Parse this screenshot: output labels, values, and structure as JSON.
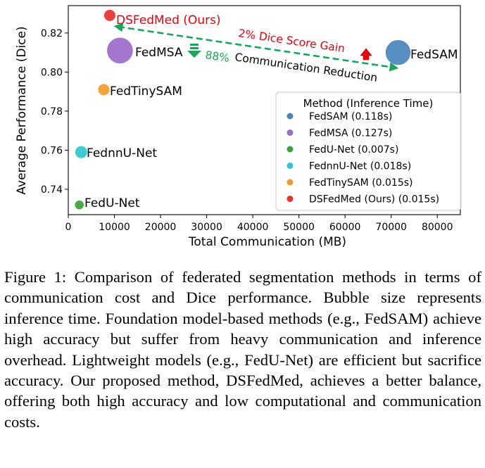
{
  "chart_data": {
    "type": "scatter",
    "subtype": "bubble",
    "title": "",
    "xlabel": "Total Communication (MB)",
    "ylabel": "Average Performance (Dice)",
    "xlim": [
      0,
      85000
    ],
    "ylim": [
      0.727,
      0.834
    ],
    "xticks": [
      0,
      10000,
      20000,
      30000,
      40000,
      50000,
      60000,
      70000,
      80000
    ],
    "yticks": [
      0.74,
      0.76,
      0.78,
      0.8,
      0.82
    ],
    "ytick_labels": [
      "0.74",
      "0.76",
      "0.78",
      "0.80",
      "0.82"
    ],
    "grid": false,
    "legend_title": "Method (Inference Time)",
    "legend_position": "lower-right",
    "series": [
      {
        "name": "FedSAM",
        "legend": "FedSAM (0.118s)",
        "x": 71500,
        "y": 0.81,
        "inference_time_s": 0.118,
        "color": "#4a86bd"
      },
      {
        "name": "FedMSA",
        "legend": "FedMSA (0.127s)",
        "x": 11200,
        "y": 0.811,
        "inference_time_s": 0.127,
        "color": "#9b6bc9"
      },
      {
        "name": "FedU-Net",
        "legend": "FedU-Net (0.007s)",
        "x": 2400,
        "y": 0.732,
        "inference_time_s": 0.007,
        "color": "#3aa23a"
      },
      {
        "name": "FednnU-Net",
        "legend": "FednnU-Net (0.018s)",
        "x": 2800,
        "y": 0.759,
        "inference_time_s": 0.018,
        "color": "#2fc7cf"
      },
      {
        "name": "FedTinySAM",
        "legend": "FedTinySAM (0.015s)",
        "x": 7700,
        "y": 0.791,
        "inference_time_s": 0.015,
        "color": "#f39a2f"
      },
      {
        "name": "DSFedMed",
        "legend": "DSFedMed (Ours) (0.015s)",
        "x": 9000,
        "y": 0.829,
        "inference_time_s": 0.015,
        "color": "#e8312f"
      }
    ],
    "point_labels": {
      "FedSAM": "FedSAM",
      "FedMSA": "FedMSA",
      "FedU-Net": "FedU-Net",
      "FednnU-Net": "FednnU-Net",
      "FedTinySAM": "FedTinySAM",
      "DSFedMed": "DSFedMed (Ours)"
    },
    "annotations": {
      "dice_gain": "2% Dice Score Gain",
      "dice_gain_color": "#e8000b",
      "comm_reduction": "Communication Reduction",
      "comm_reduction_pct": "88%",
      "comm_color": "#1aa55a"
    }
  },
  "caption": "Figure 1: Comparison of federated segmentation methods in terms of communication cost and Dice performance. Bubble size represents inference time. Foundation model-based methods (e.g., FedSAM) achieve high accuracy but suffer from heavy communication and inference overhead. Lightweight models (e.g., FedU-Net) are efficient but sacrifice accuracy. Our proposed method, DSFedMed, achieves a better balance, offering both high accuracy and low computational and communication costs."
}
